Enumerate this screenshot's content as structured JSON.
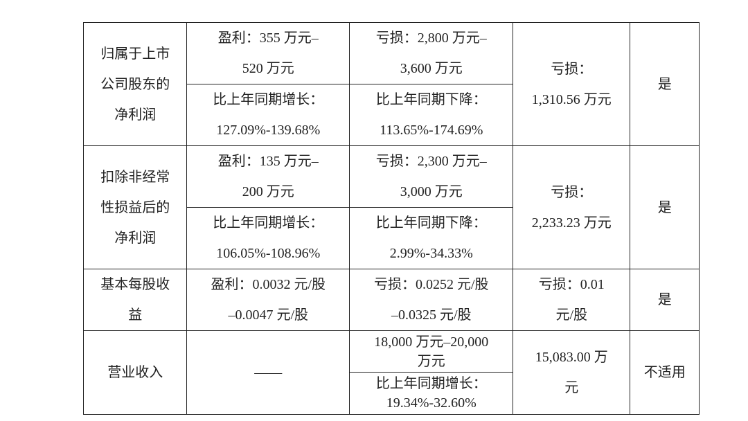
{
  "rows": [
    {
      "label": [
        "归属于上市",
        "公司股东的",
        "净利润"
      ],
      "c1a": [
        "盈利：355 万元–",
        "520 万元"
      ],
      "c1b": [
        "比上年同期增长：",
        "127.09%-139.68%"
      ],
      "c2a": [
        "亏损：2,800 万元–",
        "3,600 万元"
      ],
      "c2b": [
        "比上年同期下降：",
        "113.65%-174.69%"
      ],
      "c3": [
        "亏损：",
        "1,310.56 万元"
      ],
      "c4": "是"
    },
    {
      "label": [
        "扣除非经常",
        "性损益后的",
        "净利润"
      ],
      "c1a": [
        "盈利：135 万元–",
        "200 万元"
      ],
      "c1b": [
        "比上年同期增长：",
        "106.05%-108.96%"
      ],
      "c2a": [
        "亏损：2,300 万元–",
        "3,000 万元"
      ],
      "c2b": [
        "比上年同期下降：",
        "2.99%-34.33%"
      ],
      "c3": [
        "亏损：",
        "2,233.23 万元"
      ],
      "c4": "是"
    },
    {
      "label": [
        "基本每股收",
        "益"
      ],
      "c1": [
        "盈利：0.0032 元/股",
        "–0.0047 元/股"
      ],
      "c2": [
        "亏损：0.0252 元/股",
        "–0.0325 元/股"
      ],
      "c3": [
        "亏损：0.01",
        "元/股"
      ],
      "c4": "是"
    },
    {
      "label": [
        "营业收入"
      ],
      "c1": "——",
      "c2a": [
        "18,000 万元–20,000",
        "万元"
      ],
      "c2b": [
        "比上年同期增长：",
        "19.34%-32.60%"
      ],
      "c3": [
        "15,083.00 万",
        "元"
      ],
      "c4": "不适用"
    }
  ]
}
